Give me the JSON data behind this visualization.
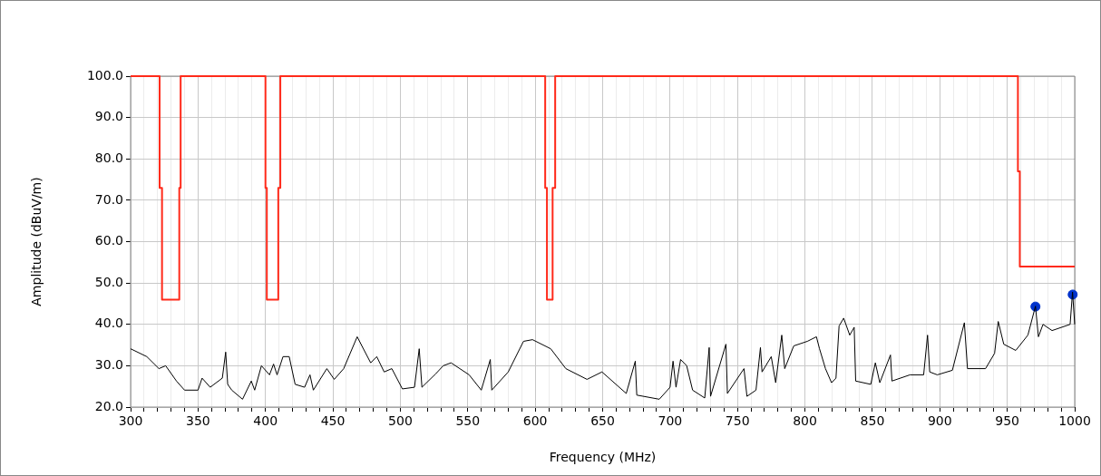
{
  "chart_data": {
    "type": "line",
    "xlabel": "Frequency (MHz)",
    "ylabel": "Amplitude (dBuV/m)",
    "xlim": [
      300,
      1000
    ],
    "ylim": [
      20,
      100
    ],
    "xticks": [
      300,
      {
        "value": 310,
        "label": null
      },
      {
        "value": 320,
        "label": null
      },
      {
        "value": 330,
        "label": null
      },
      {
        "value": 340,
        "label": null
      },
      350,
      {
        "value": 360,
        "label": null
      },
      {
        "value": 370,
        "label": null
      },
      {
        "value": 380,
        "label": null
      },
      {
        "value": 390,
        "label": null
      },
      400,
      {
        "value": 410,
        "label": null
      },
      {
        "value": 420,
        "label": null
      },
      {
        "value": 430,
        "label": null
      },
      {
        "value": 440,
        "label": null
      },
      450,
      {
        "value": 460,
        "label": null
      },
      {
        "value": 470,
        "label": null
      },
      {
        "value": 480,
        "label": null
      },
      {
        "value": 490,
        "label": null
      },
      500,
      {
        "value": 510,
        "label": null
      },
      {
        "value": 520,
        "label": null
      },
      {
        "value": 530,
        "label": null
      },
      {
        "value": 540,
        "label": null
      },
      550,
      {
        "value": 560,
        "label": null
      },
      {
        "value": 570,
        "label": null
      },
      {
        "value": 580,
        "label": null
      },
      {
        "value": 590,
        "label": null
      },
      600,
      {
        "value": 610,
        "label": null
      },
      {
        "value": 620,
        "label": null
      },
      {
        "value": 630,
        "label": null
      },
      {
        "value": 640,
        "label": null
      },
      650,
      {
        "value": 660,
        "label": null
      },
      {
        "value": 670,
        "label": null
      },
      {
        "value": 680,
        "label": null
      },
      {
        "value": 690,
        "label": null
      },
      700,
      {
        "value": 710,
        "label": null
      },
      {
        "value": 720,
        "label": null
      },
      {
        "value": 730,
        "label": null
      },
      {
        "value": 740,
        "label": null
      },
      750,
      {
        "value": 760,
        "label": null
      },
      {
        "value": 770,
        "label": null
      },
      {
        "value": 780,
        "label": null
      },
      {
        "value": 790,
        "label": null
      },
      800,
      {
        "value": 810,
        "label": null
      },
      {
        "value": 820,
        "label": null
      },
      {
        "value": 830,
        "label": null
      },
      {
        "value": 840,
        "label": null
      },
      850,
      {
        "value": 860,
        "label": null
      },
      {
        "value": 870,
        "label": null
      },
      {
        "value": 880,
        "label": null
      },
      {
        "value": 890,
        "label": null
      },
      900,
      {
        "value": 910,
        "label": null
      },
      {
        "value": 920,
        "label": null
      },
      {
        "value": 930,
        "label": null
      },
      {
        "value": 940,
        "label": null
      },
      950,
      {
        "value": 960,
        "label": null
      },
      {
        "value": 970,
        "label": null
      },
      {
        "value": 980,
        "label": null
      },
      {
        "value": 990,
        "label": null
      },
      1000
    ],
    "yticks": [
      {
        "value": 20,
        "label": "20.0"
      },
      {
        "value": 30,
        "label": "30.0"
      },
      {
        "value": 40,
        "label": "40.0"
      },
      {
        "value": 50,
        "label": "50.0"
      },
      {
        "value": 60,
        "label": "60.0"
      },
      {
        "value": 70,
        "label": "70.0"
      },
      {
        "value": 80,
        "label": "80.0"
      },
      {
        "value": 90,
        "label": "90.0"
      },
      {
        "value": 100,
        "label": "100.0"
      }
    ],
    "grid": true,
    "legend": false,
    "series": [
      {
        "type": "step",
        "color": "#ff2a1a",
        "marker": "none",
        "x": [
          300,
          321.5,
          321.5,
          323.3,
          323.3,
          336.1,
          336.1,
          337.1,
          337.1,
          400,
          400,
          401,
          401,
          409.5,
          409.5,
          411,
          411,
          607.4,
          607.4,
          608.7,
          608.7,
          612.9,
          612.9,
          614.8,
          614.8,
          957.9,
          957.9,
          959.3,
          959.3,
          1000
        ],
        "values": [
          100,
          100,
          73,
          73,
          46,
          46,
          73,
          73,
          100,
          100,
          73,
          73,
          46,
          46,
          73,
          73,
          100,
          100,
          73,
          73,
          46,
          46,
          73,
          73,
          100,
          100,
          77,
          77,
          54,
          54
        ]
      },
      {
        "color": "#000000",
        "marker": "none",
        "x": [
          300,
          312,
          321,
          326,
          334,
          340,
          350,
          353,
          359,
          368,
          370.5,
          372,
          375,
          383,
          389.5,
          392,
          397,
          403,
          406,
          408.6,
          413,
          417.6,
          422,
          429,
          433,
          435.5,
          445.5,
          451,
          458,
          468,
          478,
          482.5,
          488,
          493.7,
          501.5,
          510.5,
          514,
          516,
          526.4,
          531.8,
          537.6,
          551,
          560,
          566.7,
          567.8,
          580,
          591.3,
          598,
          611.5,
          622.7,
          638.4,
          649.5,
          667.5,
          674.2,
          675.3,
          692,
          700,
          702.2,
          704.4,
          707.8,
          712.3,
          716.7,
          725.7,
          729,
          730,
          741.4,
          742.5,
          754.8,
          757,
          763.7,
          767,
          768.2,
          775,
          778.3,
          782.8,
          785,
          791.7,
          801.8,
          808.5,
          810.8,
          815.2,
          819.7,
          823,
          825.3,
          828.7,
          833.2,
          836.5,
          837.6,
          848.8,
          852.2,
          855.5,
          863.4,
          864.5,
          877.9,
          888,
          890.9,
          892.5,
          898.1,
          909.3,
          918.2,
          920.5,
          933.9,
          940.6,
          943.3,
          947.4,
          956.3,
          965.3,
          970.9,
          973.1,
          976.5,
          983.2,
          996.6,
          998.4,
          1000
        ],
        "values": [
          34.1,
          32.2,
          29.3,
          30,
          26.3,
          24.1,
          24.1,
          27,
          24.8,
          27,
          33.3,
          25.5,
          24.1,
          21.9,
          26.3,
          24.1,
          30,
          27.8,
          30.4,
          27.8,
          32.2,
          32.2,
          25.5,
          24.8,
          27.8,
          24.1,
          29.3,
          26.7,
          29.3,
          37,
          30.7,
          32.2,
          28.5,
          29.3,
          24.4,
          24.8,
          34.1,
          24.8,
          28.1,
          30,
          30.7,
          27.8,
          24.1,
          31.5,
          24.1,
          28.5,
          35.9,
          36.3,
          34.1,
          29.3,
          26.7,
          28.5,
          23.3,
          31.1,
          22.9,
          21.9,
          24.8,
          31.1,
          24.8,
          31.5,
          30,
          24.1,
          22.2,
          34.4,
          22.6,
          35.2,
          23.3,
          29.3,
          22.6,
          24.1,
          34.4,
          28.5,
          32.2,
          25.9,
          37.4,
          29.3,
          34.8,
          35.9,
          37,
          34.1,
          29.3,
          25.9,
          27,
          39.6,
          41.5,
          37.4,
          39.3,
          26.3,
          25.5,
          30.7,
          25.9,
          32.6,
          26.3,
          27.8,
          27.8,
          37.4,
          28.5,
          27.8,
          28.9,
          40.4,
          29.3,
          29.3,
          33,
          40.7,
          35.2,
          33.7,
          37.4,
          44.4,
          37,
          40,
          38.5,
          40,
          47.8,
          40
        ]
      },
      {
        "type": "scatter",
        "color": "#0033cc",
        "marker": "circle",
        "x": [
          970.9,
          998.5
        ],
        "values": [
          44.3,
          47.2
        ]
      }
    ]
  }
}
